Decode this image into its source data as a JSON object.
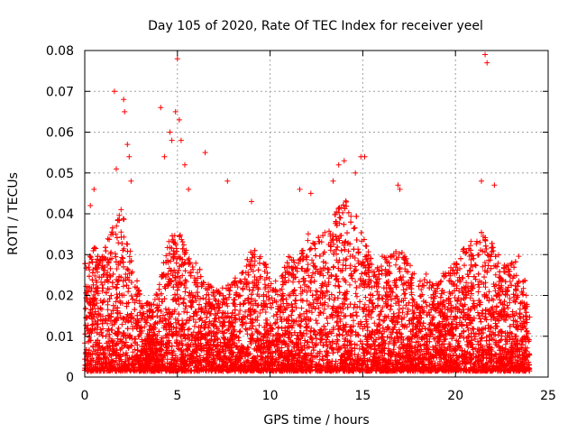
{
  "chart_data": {
    "type": "scatter",
    "title": "Day 105 of 2020, Rate Of TEC Index for receiver yeel",
    "xlabel": "GPS time / hours",
    "ylabel": "ROTI / TECUs",
    "xlim": [
      0,
      25
    ],
    "ylim": [
      0,
      0.08
    ],
    "xticks": [
      0,
      5,
      10,
      15,
      20,
      25
    ],
    "xtick_labels": [
      "0",
      "5",
      "10",
      "15",
      "20",
      "25"
    ],
    "yticks": [
      0,
      0.01,
      0.02,
      0.03,
      0.04,
      0.05,
      0.06,
      0.07,
      0.08
    ],
    "ytick_labels": [
      "0",
      "0.01",
      "0.02",
      "0.03",
      "0.04",
      "0.05",
      "0.06",
      "0.07",
      "0.08"
    ],
    "grid": true,
    "marker": "+",
    "color": "#ff0000",
    "envelope": {
      "description": "approximate upper extent of the dense ROTI cloud vs time",
      "x": [
        0,
        0.5,
        1.0,
        1.5,
        2.0,
        2.5,
        3.0,
        3.5,
        4.0,
        4.5,
        5.0,
        5.5,
        6.0,
        6.5,
        7.0,
        7.5,
        8.0,
        8.5,
        9.0,
        9.5,
        10.0,
        10.5,
        11.0,
        11.5,
        12.0,
        12.5,
        13.0,
        13.5,
        14.0,
        14.5,
        15.0,
        15.5,
        16.0,
        16.5,
        17.0,
        17.5,
        18.0,
        18.5,
        19.0,
        19.5,
        20.0,
        20.5,
        21.0,
        21.5,
        22.0,
        22.5,
        23.0,
        23.5,
        24.0
      ],
      "y": [
        0.028,
        0.032,
        0.03,
        0.038,
        0.042,
        0.03,
        0.02,
        0.018,
        0.022,
        0.034,
        0.036,
        0.032,
        0.028,
        0.024,
        0.022,
        0.022,
        0.024,
        0.026,
        0.032,
        0.03,
        0.026,
        0.024,
        0.03,
        0.028,
        0.036,
        0.034,
        0.036,
        0.04,
        0.044,
        0.042,
        0.036,
        0.028,
        0.03,
        0.03,
        0.032,
        0.028,
        0.024,
        0.026,
        0.024,
        0.026,
        0.028,
        0.032,
        0.034,
        0.036,
        0.034,
        0.028,
        0.028,
        0.03,
        0.018
      ]
    },
    "outliers": {
      "x": [
        0.3,
        0.5,
        1.6,
        1.7,
        2.1,
        2.15,
        2.3,
        2.4,
        2.5,
        4.1,
        4.3,
        4.6,
        4.7,
        4.9,
        5.0,
        5.1,
        5.2,
        5.4,
        5.6,
        6.5,
        7.7,
        9.0,
        11.6,
        12.2,
        13.4,
        13.7,
        14.0,
        14.6,
        14.9,
        15.1,
        16.9,
        17.0,
        21.4,
        21.6,
        21.7,
        22.1
      ],
      "y": [
        0.042,
        0.046,
        0.07,
        0.051,
        0.068,
        0.065,
        0.057,
        0.054,
        0.048,
        0.066,
        0.054,
        0.06,
        0.058,
        0.065,
        0.078,
        0.063,
        0.058,
        0.052,
        0.046,
        0.055,
        0.048,
        0.043,
        0.046,
        0.045,
        0.048,
        0.052,
        0.053,
        0.05,
        0.054,
        0.054,
        0.047,
        0.046,
        0.048,
        0.079,
        0.077,
        0.047
      ]
    }
  }
}
